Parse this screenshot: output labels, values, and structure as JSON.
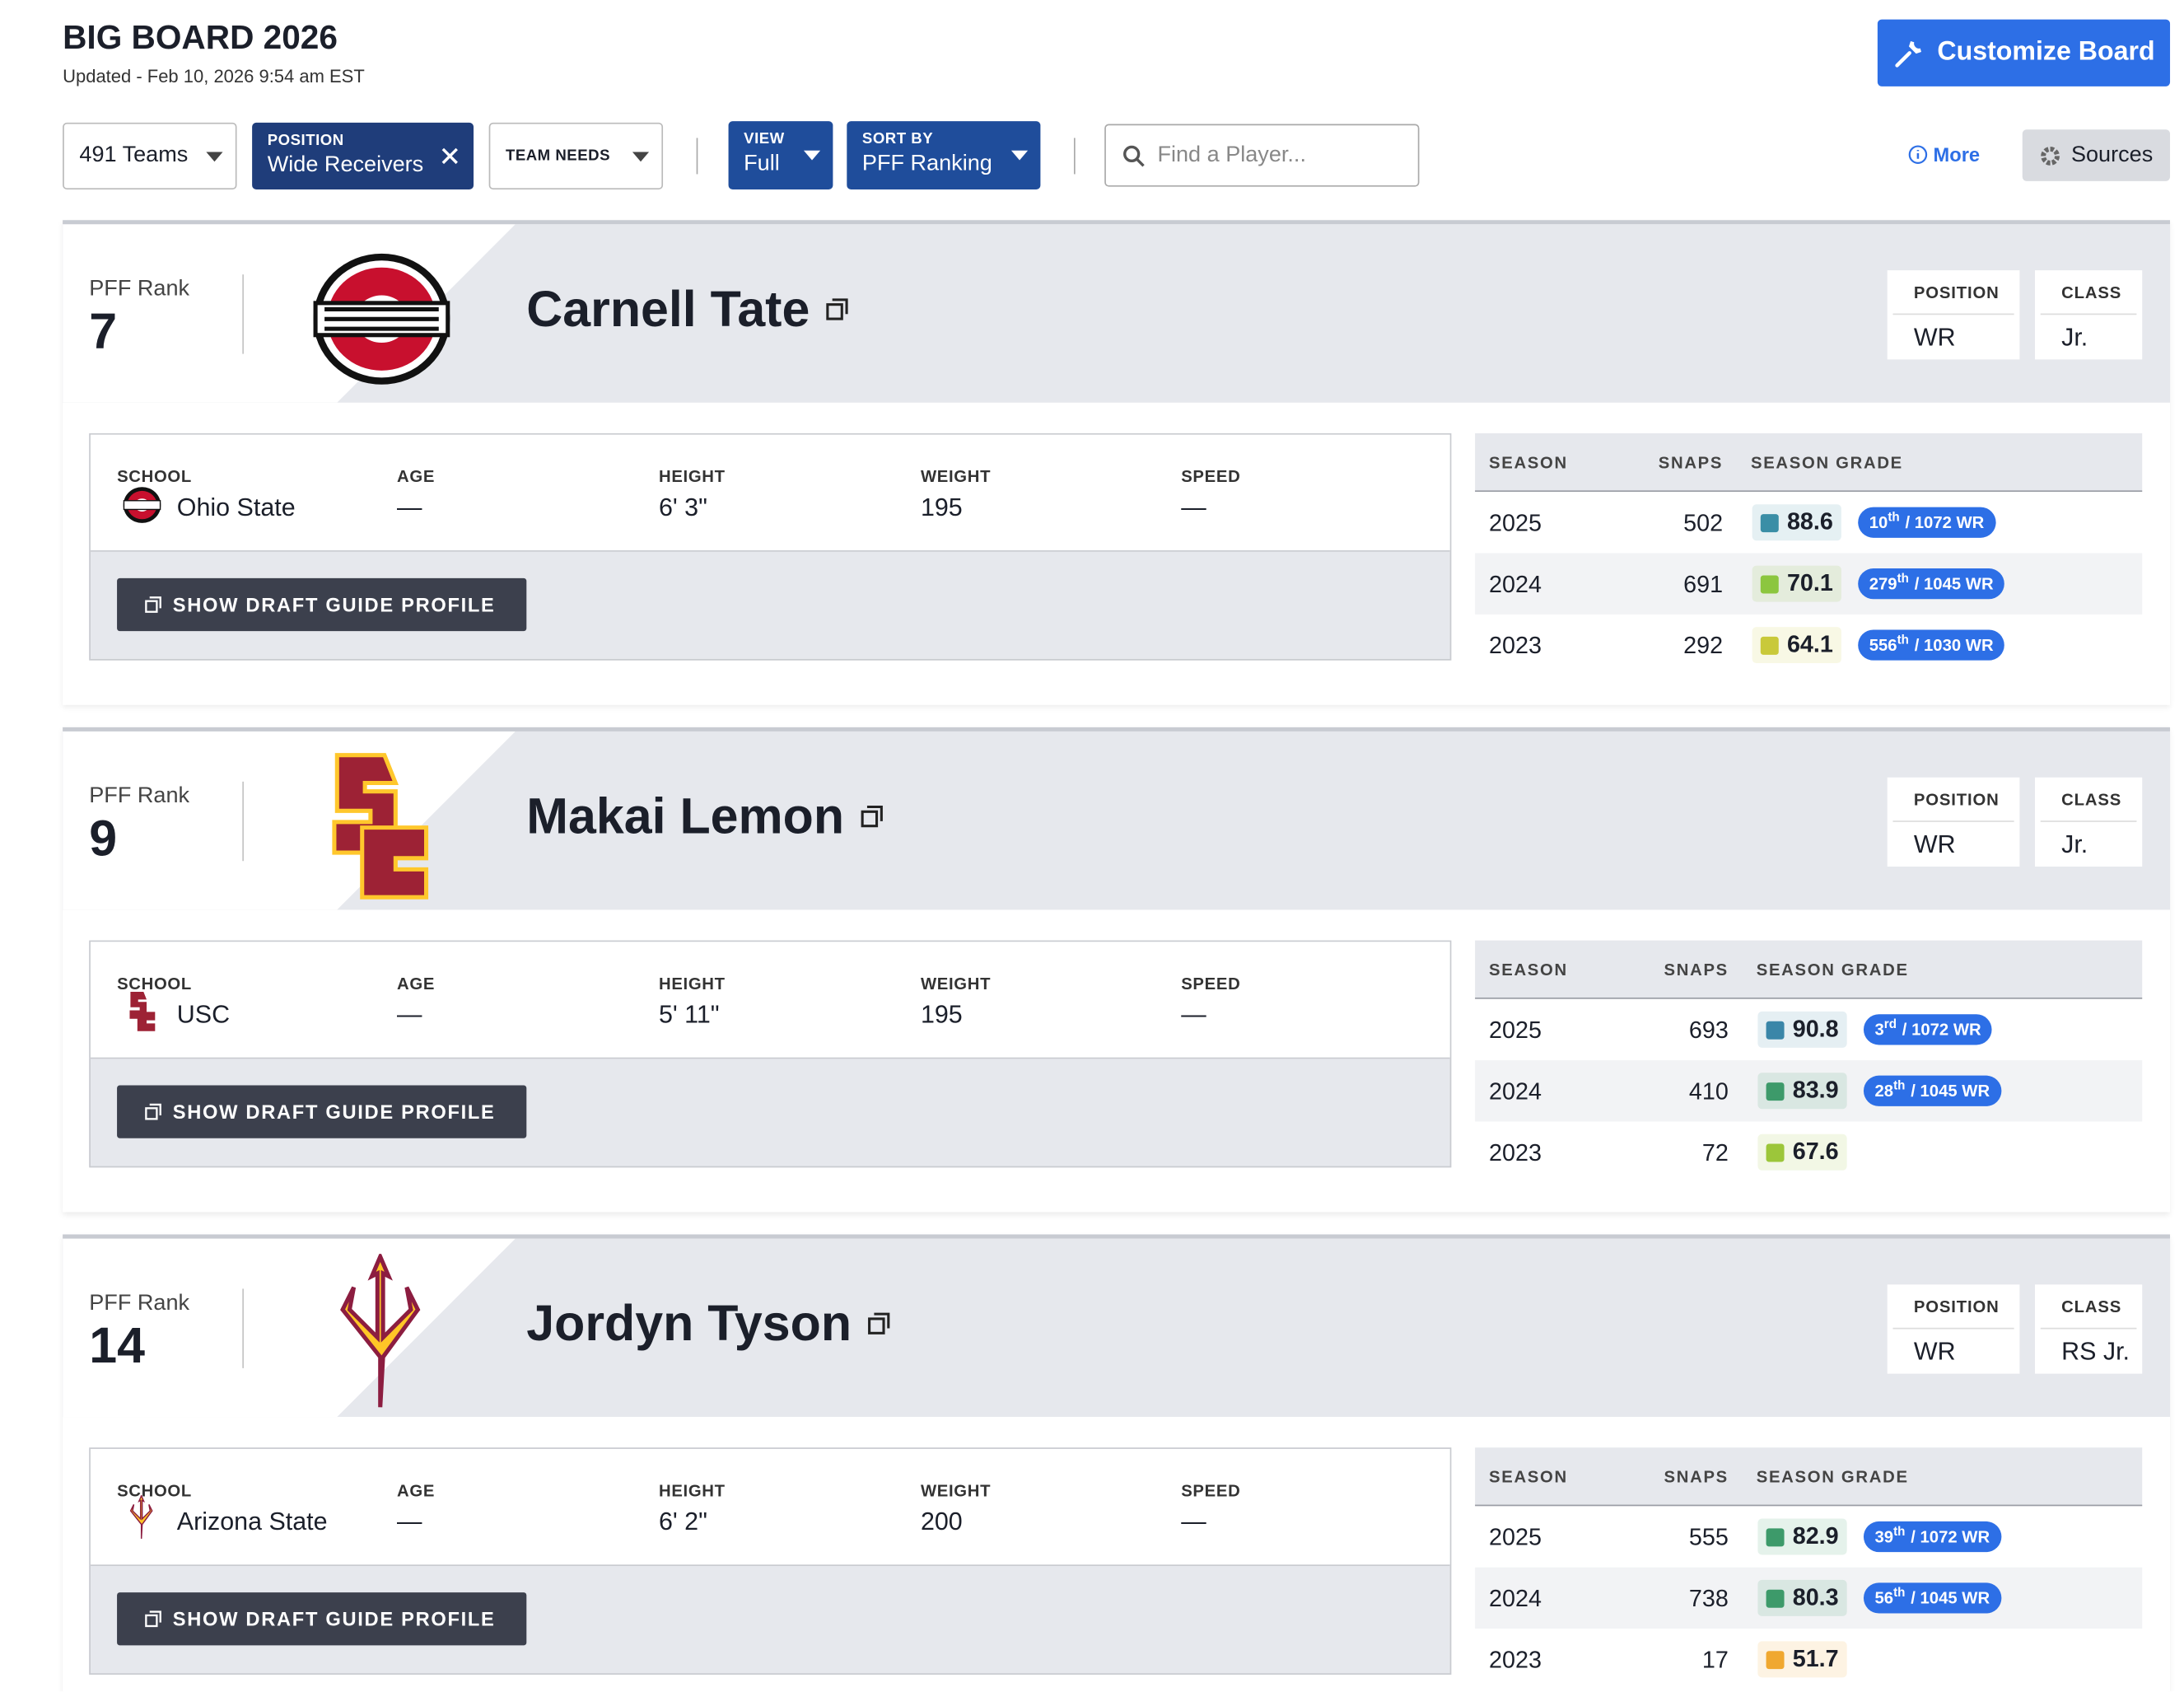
{
  "header": {
    "title": "BIG BOARD 2026",
    "updated": "Updated - Feb 10, 2026 9:54 am EST",
    "customize_button": "Customize Board"
  },
  "toolbar": {
    "teams": "491 Teams",
    "position": {
      "label": "POSITION",
      "value": "Wide Receivers"
    },
    "team_needs": "TEAM NEEDS",
    "view": {
      "label": "VIEW",
      "value": "Full"
    },
    "sort_by": {
      "label": "SORT BY",
      "value": "PFF Ranking"
    },
    "search_placeholder": "Find a Player...",
    "more": "More",
    "sources": "Sources"
  },
  "labels": {
    "rank": "PFF Rank",
    "position": "POSITION",
    "class": "CLASS",
    "school": "SCHOOL",
    "age": "AGE",
    "height": "HEIGHT",
    "weight": "WEIGHT",
    "speed": "SPEED",
    "draft_guide": "SHOW DRAFT GUIDE PROFILE",
    "season": "SEASON",
    "snaps": "SNAPS",
    "season_grade": "SEASON GRADE"
  },
  "players": [
    {
      "rank": 7,
      "name": "Carnell Tate",
      "position": "WR",
      "class": "Jr.",
      "school": "Ohio State",
      "age": "—",
      "height": "6' 3\"",
      "weight": 195,
      "speed": "—",
      "seasons": [
        {
          "season": "2025",
          "snaps": 502,
          "grade": 88.6,
          "color": "#3a8ea6",
          "rank": {
            "place": "10",
            "suffix": "th",
            "of": "/ 1072 WR"
          }
        },
        {
          "season": "2024",
          "snaps": 691,
          "grade": 70.1,
          "color": "#8cc63f",
          "rank": {
            "place": "279",
            "suffix": "th",
            "of": "/ 1045 WR"
          }
        },
        {
          "season": "2023",
          "snaps": 292,
          "grade": 64.1,
          "color": "#c9c93a",
          "rank": {
            "place": "556",
            "suffix": "th",
            "of": "/ 1030 WR"
          }
        }
      ]
    },
    {
      "rank": 9,
      "name": "Makai Lemon",
      "position": "WR",
      "class": "Jr.",
      "school": "USC",
      "age": "—",
      "height": "5' 11\"",
      "weight": 195,
      "speed": "—",
      "seasons": [
        {
          "season": "2025",
          "snaps": 693,
          "grade": 90.8,
          "color": "#3a86a8",
          "rank": {
            "place": "3",
            "suffix": "rd",
            "of": "/ 1072 WR"
          }
        },
        {
          "season": "2024",
          "snaps": 410,
          "grade": 83.9,
          "color": "#3d9a6a",
          "rank": {
            "place": "28",
            "suffix": "th",
            "of": "/ 1045 WR"
          }
        },
        {
          "season": "2023",
          "snaps": 72,
          "grade": 67.6,
          "color": "#9cc63a"
        }
      ]
    },
    {
      "rank": 14,
      "name": "Jordyn Tyson",
      "position": "WR",
      "class": "RS Jr.",
      "school": "Arizona State",
      "age": "—",
      "height": "6' 2\"",
      "weight": 200,
      "speed": "—",
      "seasons": [
        {
          "season": "2025",
          "snaps": 555,
          "grade": 82.9,
          "color": "#3d9a6a",
          "rank": {
            "place": "39",
            "suffix": "th",
            "of": "/ 1072 WR"
          }
        },
        {
          "season": "2024",
          "snaps": 738,
          "grade": 80.3,
          "color": "#3d9a6a",
          "rank": {
            "place": "56",
            "suffix": "th",
            "of": "/ 1045 WR"
          }
        },
        {
          "season": "2023",
          "snaps": 17,
          "grade": 51.7,
          "color": "#f0a830"
        }
      ]
    }
  ]
}
